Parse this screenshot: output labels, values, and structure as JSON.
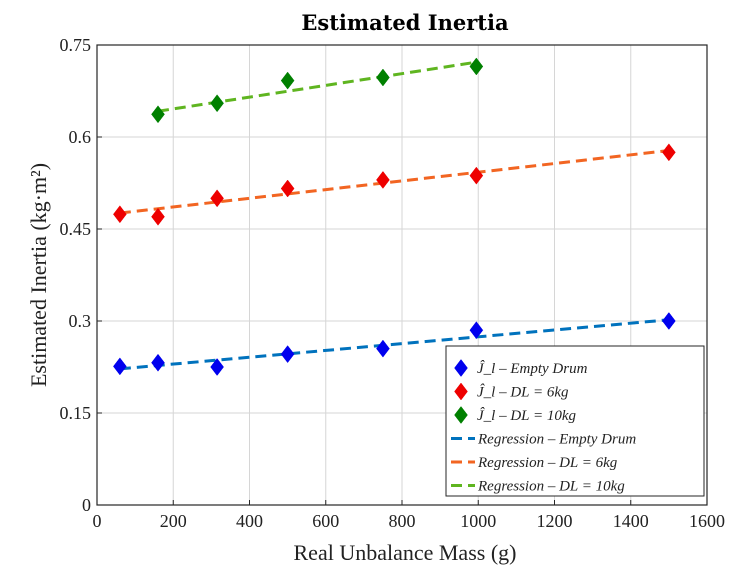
{
  "chart_data": {
    "type": "scatter",
    "title": "Estimated Inertia",
    "xlabel": "Real Unbalance Mass (g)",
    "ylabel": "Estimated Inertia (kg·m²)",
    "xlim": [
      0,
      1600
    ],
    "ylim": [
      0,
      0.75
    ],
    "xticks": [
      "0",
      "200",
      "400",
      "600",
      "800",
      "1000",
      "1200",
      "1400",
      "1600"
    ],
    "yticks": [
      "0",
      "0.15",
      "0.3",
      "0.45",
      "0.6",
      "0.75"
    ],
    "grid": true,
    "legend_position": "bottom-right",
    "series": [
      {
        "name": "Ĵ_l – Empty Drum",
        "kind": "marker",
        "color": "#0000ee",
        "x": [
          60,
          160,
          315,
          500,
          750,
          995,
          1500
        ],
        "y": [
          0.226,
          0.232,
          0.225,
          0.246,
          0.255,
          0.285,
          0.3
        ]
      },
      {
        "name": "Ĵ_l – DL = 6kg",
        "kind": "marker",
        "color": "#ee0000",
        "x": [
          60,
          160,
          315,
          500,
          750,
          995,
          1500
        ],
        "y": [
          0.474,
          0.47,
          0.5,
          0.516,
          0.53,
          0.537,
          0.575
        ]
      },
      {
        "name": "Ĵ_l – DL = 10kg",
        "kind": "marker",
        "color": "#008000",
        "x": [
          160,
          315,
          500,
          750,
          995
        ],
        "y": [
          0.637,
          0.655,
          0.692,
          0.697,
          0.715
        ]
      },
      {
        "name": "Regression – Empty Drum",
        "kind": "line",
        "color": "#0072bd",
        "x": [
          60,
          1500
        ],
        "y": [
          0.222,
          0.302
        ]
      },
      {
        "name": "Regression – DL = 6kg",
        "kind": "line",
        "color": "#f26522",
        "x": [
          60,
          1500
        ],
        "y": [
          0.476,
          0.578
        ]
      },
      {
        "name": "Regression – DL = 10kg",
        "kind": "line",
        "color": "#5fb520",
        "x": [
          160,
          995
        ],
        "y": [
          0.642,
          0.722
        ]
      }
    ]
  }
}
